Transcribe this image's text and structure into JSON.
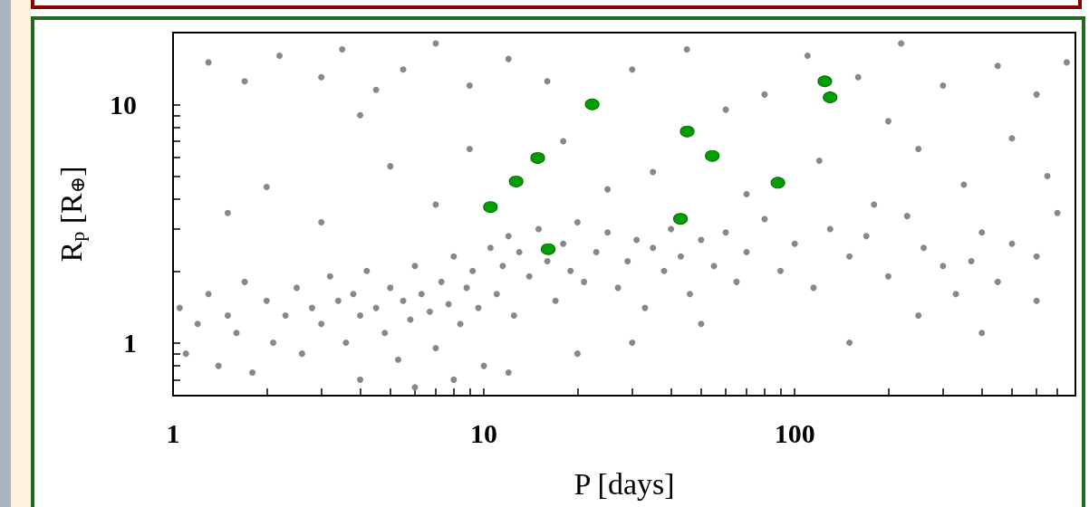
{
  "chart_data": {
    "type": "scatter",
    "xlabel": "P [days]",
    "ylabel": "R$_{p}$ [R$_{⊕}$]",
    "log": "xy",
    "marker": "circle",
    "xlim": [
      1,
      800
    ],
    "ylim": [
      0.6,
      20
    ],
    "xticks": [
      1,
      {
        "value": 2,
        "label": null
      },
      {
        "value": 3,
        "label": null
      },
      {
        "value": 4,
        "label": null
      },
      {
        "value": 5,
        "label": null
      },
      {
        "value": 6,
        "label": null
      },
      {
        "value": 7,
        "label": null
      },
      {
        "value": 8,
        "label": null
      },
      {
        "value": 9,
        "label": null
      },
      10,
      {
        "value": 20,
        "label": null
      },
      {
        "value": 30,
        "label": null
      },
      {
        "value": 40,
        "label": null
      },
      {
        "value": 50,
        "label": null
      },
      {
        "value": 60,
        "label": null
      },
      {
        "value": 70,
        "label": null
      },
      {
        "value": 80,
        "label": null
      },
      {
        "value": 90,
        "label": null
      },
      100,
      {
        "value": 200,
        "label": null
      },
      {
        "value": 300,
        "label": null
      },
      {
        "value": 400,
        "label": null
      },
      {
        "value": 500,
        "label": null
      },
      {
        "value": 600,
        "label": null
      },
      {
        "value": 700,
        "label": null
      }
    ],
    "yticks": [
      {
        "value": 0.7,
        "label": null
      },
      {
        "value": 0.8,
        "label": null
      },
      {
        "value": 0.9,
        "label": null
      },
      1,
      {
        "value": 2,
        "label": null
      },
      {
        "value": 3,
        "label": null
      },
      {
        "value": 4,
        "label": null
      },
      {
        "value": 5,
        "label": null
      },
      {
        "value": 6,
        "label": null
      },
      {
        "value": 7,
        "label": null
      },
      {
        "value": 8,
        "label": null
      },
      {
        "value": 9,
        "label": null
      },
      10
    ],
    "series": [
      {
        "color": "#888888",
        "x": [
          1.05,
          1.1,
          1.2,
          1.3,
          1.4,
          1.5,
          1.6,
          1.7,
          1.8,
          2,
          2.1,
          2.3,
          2.5,
          2.6,
          2.8,
          3,
          3.2,
          3.4,
          3.6,
          3.8,
          4,
          4.2,
          4.5,
          4.8,
          5,
          5.3,
          5.5,
          5.8,
          6,
          6.3,
          6.7,
          7,
          7.3,
          7.7,
          8,
          8.4,
          8.8,
          9.2,
          9.6,
          10,
          10.5,
          11,
          11.5,
          12,
          12.5,
          13,
          14,
          15,
          16,
          17,
          18,
          19,
          20,
          21,
          23,
          25,
          27,
          29,
          31,
          33,
          35,
          38,
          40,
          43,
          46,
          50,
          55,
          60,
          65,
          70,
          80,
          90,
          100,
          115,
          130,
          150,
          170,
          200,
          230,
          260,
          300,
          330,
          370,
          400,
          450,
          500,
          600,
          700,
          20,
          30,
          50,
          150,
          250,
          400,
          600,
          2,
          3,
          5,
          7,
          9,
          25,
          35,
          70,
          120,
          180,
          250,
          350,
          500,
          650,
          18,
          1.5,
          1.3,
          1.7,
          2.2,
          3,
          3.5,
          4.5,
          5.5,
          7,
          9,
          12,
          16,
          30,
          45,
          80,
          110,
          160,
          220,
          300,
          450,
          600,
          750,
          4,
          60,
          200,
          6,
          8,
          12,
          4
        ],
        "values": [
          1.4,
          0.9,
          1.2,
          1.6,
          0.8,
          1.3,
          1.1,
          1.8,
          0.75,
          1.5,
          1.0,
          1.3,
          1.7,
          0.9,
          1.4,
          1.2,
          1.9,
          1.5,
          1.0,
          1.6,
          1.3,
          2.0,
          1.4,
          1.1,
          1.7,
          0.85,
          1.5,
          1.25,
          2.1,
          1.6,
          1.35,
          0.95,
          1.8,
          1.45,
          2.3,
          1.2,
          1.7,
          2.0,
          1.4,
          0.8,
          2.5,
          1.6,
          2.1,
          2.8,
          1.3,
          2.4,
          1.9,
          3.0,
          2.2,
          1.5,
          2.6,
          2.0,
          3.2,
          1.8,
          2.4,
          2.9,
          1.7,
          2.2,
          2.7,
          1.4,
          2.5,
          2.0,
          3.0,
          2.3,
          1.6,
          2.7,
          2.1,
          2.9,
          1.8,
          2.4,
          3.3,
          2.0,
          2.6,
          1.7,
          3.0,
          2.3,
          2.8,
          1.9,
          3.4,
          2.5,
          2.1,
          1.6,
          2.2,
          2.9,
          1.8,
          2.6,
          2.3,
          3.5,
          0.9,
          1.0,
          1.2,
          1.0,
          1.3,
          1.1,
          1.5,
          4.5,
          3.2,
          5.5,
          3.8,
          6.5,
          4.4,
          5.2,
          4.2,
          5.8,
          3.8,
          6.5,
          4.6,
          7.2,
          5.0,
          7.0,
          3.5,
          15,
          12.5,
          16,
          13,
          17,
          11.5,
          14,
          18,
          12,
          15.5,
          12.5,
          14,
          17,
          11,
          16,
          13,
          18,
          12,
          14.5,
          11,
          15,
          9,
          9.5,
          8.5,
          0.65,
          0.7,
          0.75,
          0.7
        ]
      },
      {
        "color": "#00a000",
        "x": [
          10.5,
          12.7,
          14.9,
          16.1,
          22.3,
          45.1,
          42.9,
          54.3,
          88.3,
          125,
          130
        ],
        "values": [
          3.71,
          4.75,
          5.96,
          2.47,
          10.0,
          7.7,
          3.31,
          6.08,
          4.69,
          12.5,
          10.7
        ]
      }
    ]
  }
}
